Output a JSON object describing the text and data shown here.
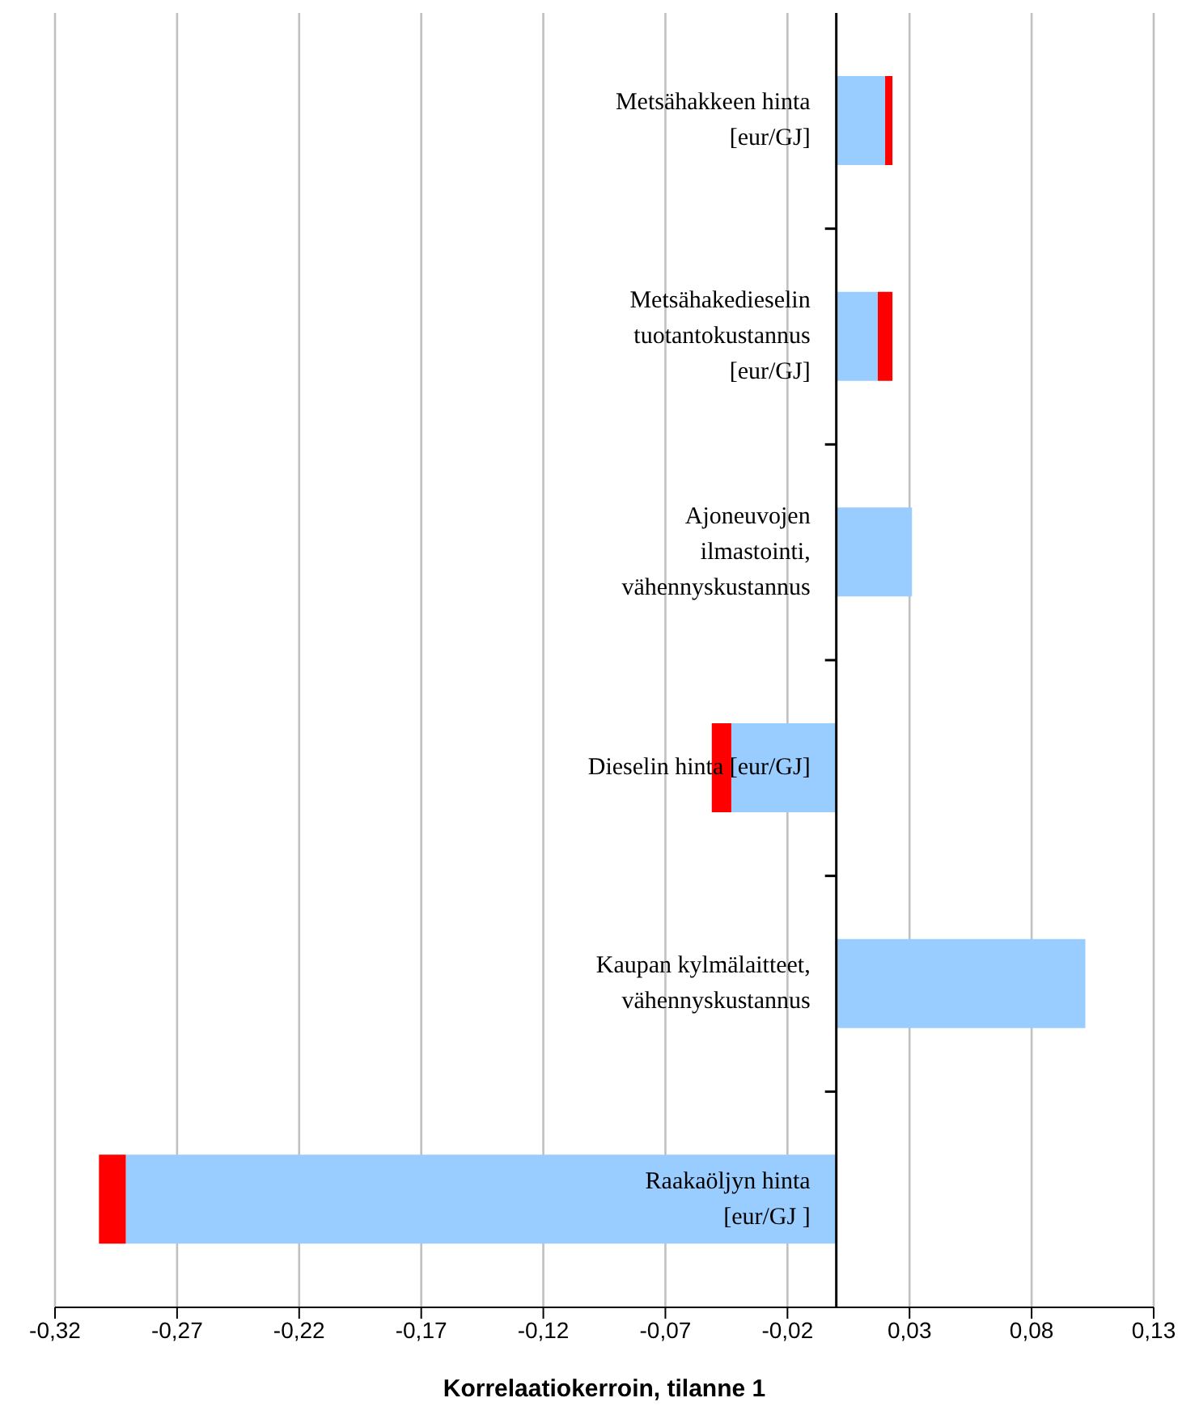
{
  "chart_data": {
    "type": "bar",
    "orientation": "horizontal",
    "stacked": true,
    "categories": [
      "Metsähakkeen hinta [eur/GJ]",
      "Metsähakedieselin tuotantokustannus [eur/GJ]",
      "Ajoneuvojen ilmastointi, vähennyskustannus",
      "Dieselin hinta [eur/GJ]",
      "Kaupan kylmälaitteet, vähennyskustannus",
      "Raakaöljyn hinta [eur/GJ ]"
    ],
    "series": [
      {
        "color": "#99ccff",
        "values": [
          0.02,
          0.017,
          0.031,
          -0.043,
          0.102,
          -0.291
        ]
      },
      {
        "color": "#ff0000",
        "values": [
          0.003,
          0.006,
          null,
          -0.008,
          null,
          -0.011
        ]
      }
    ],
    "xlim": [
      -0.32,
      0.13
    ],
    "xticks": [
      {
        "value": -0.32,
        "label": "-0,32"
      },
      {
        "value": -0.27,
        "label": "-0,27"
      },
      {
        "value": -0.22,
        "label": "-0,22"
      },
      {
        "value": -0.17,
        "label": "-0,17"
      },
      {
        "value": -0.12,
        "label": "-0,12"
      },
      {
        "value": -0.07,
        "label": "-0,07"
      },
      {
        "value": -0.02,
        "label": "-0,02"
      },
      {
        "value": 0.03,
        "label": "0,03"
      },
      {
        "value": 0.08,
        "label": "0,08"
      },
      {
        "value": 0.13,
        "label": "0,13"
      }
    ],
    "xlabel": "Korrelaatiokerroin, tilanne 1",
    "grid": "x",
    "legend": false
  }
}
